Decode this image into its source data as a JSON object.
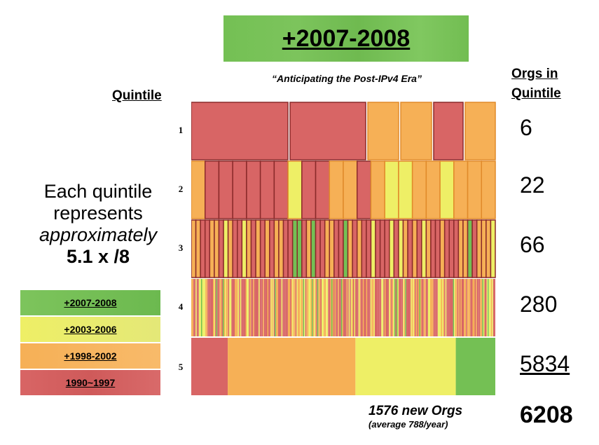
{
  "title": "+2007-2008",
  "subtitle": "“Anticipating the Post-IPv4 Era”",
  "quintile_header": "Quintile",
  "orgs_header_line1": "Orgs in",
  "orgs_header_line2": "Quintile",
  "note": {
    "line1": "Each quintile",
    "line2": "represents",
    "line3": "approximately",
    "line4": "5.1 x /8"
  },
  "legend": [
    {
      "label": "+2007-2008",
      "color": "#74c054"
    },
    {
      "label": "+2003-2006",
      "color": "#eeef66"
    },
    {
      "label": "+1998-2002",
      "color": "#f6b056"
    },
    {
      "label": "1990~1997",
      "color": "#d86565"
    }
  ],
  "footer": {
    "new_orgs": "1576 new Orgs",
    "average": "(average 788/year)"
  },
  "total": "6208",
  "chart_data": {
    "type": "bar",
    "categories": [
      "1",
      "2",
      "3",
      "4",
      "5"
    ],
    "orgs_per_quintile": [
      6,
      22,
      66,
      280,
      5834
    ],
    "total_orgs": 6208,
    "colors": {
      "1990~1997": "#d86565",
      "+1998-2002": "#f6b056",
      "+2003-2006": "#eeef66",
      "+2007-2008": "#74c054"
    },
    "quintile5_composition": [
      {
        "period": "1990~1997",
        "fraction": 0.12
      },
      {
        "period": "+1998-2002",
        "fraction": 0.42
      },
      {
        "period": "+2003-2006",
        "fraction": 0.33
      },
      {
        "period": "+2007-2008",
        "fraction": 0.13
      }
    ]
  }
}
